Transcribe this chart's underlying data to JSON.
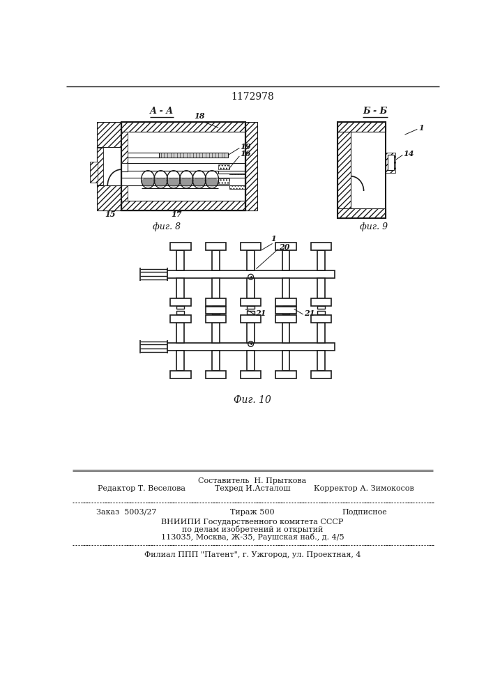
{
  "patent_number": "1172978",
  "fig8_label": "А - А",
  "fig9_label": "Б - Б",
  "fig8_caption": "фиг. 8",
  "fig9_caption": "фиг. 9",
  "fig10_caption": "Фиг. 10",
  "editor_line": "Редактор Т. Веселова",
  "composer_line": "Составитель  Н. Прыткова",
  "techred_line": "Техред И.Асталош",
  "corrector_line": "Корректор А. Зимокосов",
  "order_line": "Заказ  5003/27",
  "tirazh_line": "Тираж 500",
  "podpisnoe_line": "Подписное",
  "vnipi_line1": "ВНИИПИ Государственного комитета СССР",
  "vnipi_line2": "по делам изобретений и открытий",
  "vnipi_line3": "113035, Москва, Ж-35, Раушская наб., д. 4/5",
  "filial_line": "Филиал ППП \"Патент\", г. Ужгород, ул. Проектная, 4",
  "bg_color": "#ffffff",
  "line_color": "#1a1a1a"
}
